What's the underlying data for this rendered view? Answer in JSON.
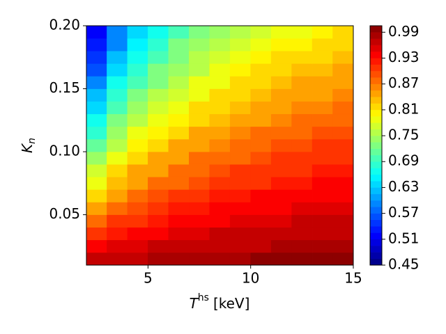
{
  "chart_data": {
    "type": "contour",
    "colormap": "jet",
    "xlabel": {
      "symbol": "T",
      "superscript": "hs",
      "rest": "[keV]"
    },
    "ylabel": {
      "symbol": "K",
      "subscript": "n"
    },
    "x": [
      2.5,
      3.5,
      4.5,
      5.5,
      6.5,
      7.5,
      8.5,
      9.5,
      10.5,
      11.5,
      12.5,
      13.5,
      14.5
    ],
    "y": [
      0.015,
      0.025,
      0.035,
      0.045,
      0.055,
      0.065,
      0.075,
      0.085,
      0.095,
      0.105,
      0.115,
      0.125,
      0.135,
      0.145,
      0.155,
      0.165,
      0.175,
      0.185,
      0.195
    ],
    "z": [
      [
        0.96,
        0.97,
        0.97,
        0.98,
        0.98,
        0.98,
        0.98,
        0.98,
        0.99,
        0.99,
        0.99,
        0.99,
        0.99
      ],
      [
        0.93,
        0.95,
        0.95,
        0.96,
        0.96,
        0.97,
        0.97,
        0.97,
        0.97,
        0.98,
        0.98,
        0.98,
        0.98
      ],
      [
        0.91,
        0.92,
        0.93,
        0.94,
        0.95,
        0.95,
        0.96,
        0.96,
        0.96,
        0.96,
        0.97,
        0.97,
        0.97
      ],
      [
        0.88,
        0.9,
        0.91,
        0.92,
        0.93,
        0.94,
        0.94,
        0.95,
        0.95,
        0.95,
        0.96,
        0.96,
        0.96
      ],
      [
        0.85,
        0.88,
        0.89,
        0.91,
        0.92,
        0.92,
        0.93,
        0.93,
        0.94,
        0.94,
        0.95,
        0.95,
        0.95
      ],
      [
        0.82,
        0.85,
        0.87,
        0.89,
        0.9,
        0.91,
        0.92,
        0.92,
        0.93,
        0.93,
        0.93,
        0.94,
        0.94
      ],
      [
        0.79,
        0.83,
        0.85,
        0.87,
        0.88,
        0.89,
        0.9,
        0.91,
        0.91,
        0.92,
        0.92,
        0.93,
        0.93
      ],
      [
        0.77,
        0.81,
        0.84,
        0.85,
        0.87,
        0.88,
        0.89,
        0.9,
        0.9,
        0.91,
        0.91,
        0.92,
        0.92
      ],
      [
        0.74,
        0.79,
        0.82,
        0.84,
        0.85,
        0.87,
        0.88,
        0.88,
        0.89,
        0.9,
        0.9,
        0.91,
        0.91
      ],
      [
        0.71,
        0.76,
        0.8,
        0.82,
        0.84,
        0.85,
        0.86,
        0.87,
        0.88,
        0.89,
        0.89,
        0.9,
        0.9
      ],
      [
        0.69,
        0.74,
        0.78,
        0.8,
        0.82,
        0.84,
        0.85,
        0.86,
        0.87,
        0.87,
        0.88,
        0.89,
        0.89
      ],
      [
        0.66,
        0.72,
        0.76,
        0.78,
        0.8,
        0.82,
        0.83,
        0.85,
        0.85,
        0.86,
        0.87,
        0.88,
        0.88
      ],
      [
        0.64,
        0.7,
        0.74,
        0.77,
        0.79,
        0.81,
        0.82,
        0.83,
        0.84,
        0.85,
        0.86,
        0.86,
        0.87
      ],
      [
        0.62,
        0.68,
        0.72,
        0.75,
        0.77,
        0.79,
        0.81,
        0.82,
        0.83,
        0.84,
        0.85,
        0.85,
        0.86
      ],
      [
        0.59,
        0.66,
        0.7,
        0.73,
        0.76,
        0.78,
        0.79,
        0.81,
        0.82,
        0.83,
        0.84,
        0.84,
        0.85
      ],
      [
        0.57,
        0.64,
        0.69,
        0.72,
        0.74,
        0.76,
        0.78,
        0.8,
        0.81,
        0.82,
        0.83,
        0.83,
        0.84
      ],
      [
        0.55,
        0.62,
        0.67,
        0.7,
        0.73,
        0.75,
        0.77,
        0.78,
        0.8,
        0.81,
        0.82,
        0.82,
        0.83
      ],
      [
        0.53,
        0.6,
        0.65,
        0.69,
        0.72,
        0.74,
        0.76,
        0.77,
        0.78,
        0.8,
        0.8,
        0.81,
        0.82
      ],
      [
        0.51,
        0.59,
        0.64,
        0.67,
        0.7,
        0.72,
        0.74,
        0.76,
        0.77,
        0.78,
        0.79,
        0.8,
        0.81
      ]
    ],
    "xlim": [
      2,
      15
    ],
    "xticks": [
      5,
      10,
      15
    ],
    "ylim": [
      0.01,
      0.2
    ],
    "yticks": [
      0.05,
      {
        "value": 0.1,
        "label": "0.10"
      },
      0.15,
      {
        "value": 0.2,
        "label": "0.20"
      }
    ],
    "clim": [
      0.45,
      1.005
    ],
    "cticks": [
      0.45,
      0.51,
      0.57,
      0.63,
      0.69,
      0.75,
      0.81,
      0.87,
      0.93,
      0.99
    ]
  }
}
